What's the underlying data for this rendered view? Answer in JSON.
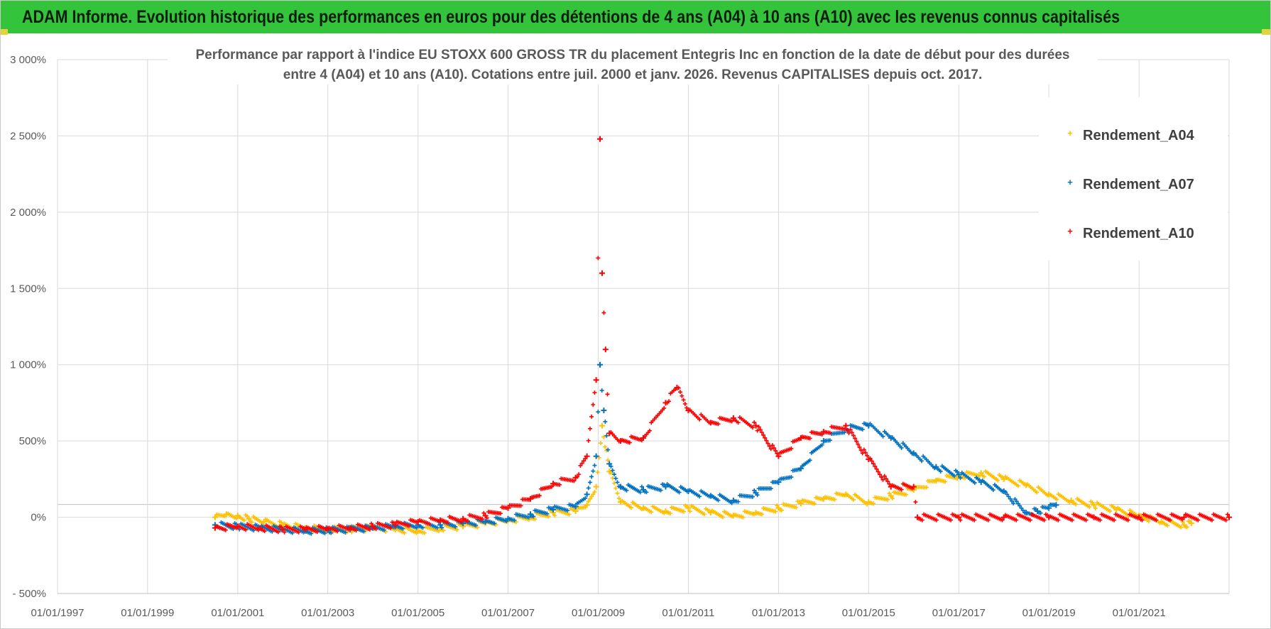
{
  "header": {
    "title": "ADAM Informe. Evolution historique des performances en euros pour des détentions de 4 ans (A04) à 10 ans (A10) avec les revenus connus capitalisés"
  },
  "chart_data": {
    "type": "scatter",
    "title_lines": [
      "Performance par rapport à l'indice EU STOXX 600 GROSS TR  du placement Entegris Inc en fonction de la date de début pour des durées",
      "entre 4 (A04) et 10 ans (A10).  Cotations entre juil. 2000 et janv. 2026. Revenus CAPITALISES depuis oct. 2017."
    ],
    "xlabel": "",
    "ylabel": "",
    "x_ticks": [
      "01/01/1997",
      "01/01/1999",
      "01/01/2001",
      "01/01/2003",
      "01/01/2005",
      "01/01/2007",
      "01/01/2009",
      "01/01/2011",
      "01/01/2013",
      "01/01/2015",
      "01/01/2017",
      "01/01/2019",
      "01/01/2021"
    ],
    "xlim": [
      "1997-01-01",
      "2023-01-01"
    ],
    "y_ticks": [
      "3 000%",
      "2 500%",
      "2 000%",
      "1 500%",
      "1 000%",
      "500%",
      "0%",
      "- 500%"
    ],
    "ylim": [
      -500,
      3000
    ],
    "grid": true,
    "legend_position": "top-right",
    "marker": "+",
    "series": [
      {
        "name": "Rendement_A04",
        "color": "#ffc000",
        "points": [
          [
            "2000-07-01",
            0
          ],
          [
            "2000-10-01",
            20
          ],
          [
            "2001-01-01",
            10
          ],
          [
            "2001-04-01",
            -10
          ],
          [
            "2001-08-01",
            -30
          ],
          [
            "2002-01-01",
            -50
          ],
          [
            "2002-07-01",
            -70
          ],
          [
            "2003-01-01",
            -80
          ],
          [
            "2003-07-01",
            -80
          ],
          [
            "2004-01-01",
            -70
          ],
          [
            "2004-07-01",
            -80
          ],
          [
            "2005-01-01",
            -90
          ],
          [
            "2005-07-01",
            -70
          ],
          [
            "2006-01-01",
            -60
          ],
          [
            "2006-07-01",
            -40
          ],
          [
            "2007-01-01",
            -20
          ],
          [
            "2007-07-01",
            0
          ],
          [
            "2008-01-01",
            30
          ],
          [
            "2008-07-01",
            40
          ],
          [
            "2008-10-01",
            80
          ],
          [
            "2008-12-15",
            200
          ],
          [
            "2009-02-01",
            600
          ],
          [
            "2009-04-01",
            300
          ],
          [
            "2009-07-01",
            100
          ],
          [
            "2010-01-01",
            60
          ],
          [
            "2010-07-01",
            40
          ],
          [
            "2011-01-01",
            60
          ],
          [
            "2011-07-01",
            30
          ],
          [
            "2012-01-01",
            10
          ],
          [
            "2012-07-01",
            30
          ],
          [
            "2013-01-01",
            60
          ],
          [
            "2013-07-01",
            90
          ],
          [
            "2014-01-01",
            120
          ],
          [
            "2014-07-01",
            150
          ],
          [
            "2015-01-01",
            100
          ],
          [
            "2015-07-01",
            140
          ],
          [
            "2016-01-01",
            180
          ],
          [
            "2016-07-01",
            240
          ],
          [
            "2017-01-01",
            270
          ],
          [
            "2017-07-01",
            290
          ],
          [
            "2018-01-01",
            250
          ],
          [
            "2018-07-01",
            210
          ],
          [
            "2019-01-01",
            150
          ],
          [
            "2019-07-01",
            110
          ],
          [
            "2020-01-01",
            80
          ],
          [
            "2020-07-01",
            50
          ],
          [
            "2021-01-01",
            10
          ],
          [
            "2021-07-01",
            -30
          ],
          [
            "2022-01-01",
            -50
          ],
          [
            "2022-03-01",
            -40
          ]
        ]
      },
      {
        "name": "Rendement_A07",
        "color": "#0070c0",
        "points": [
          [
            "2000-07-01",
            -50
          ],
          [
            "2001-01-01",
            -60
          ],
          [
            "2001-07-01",
            -70
          ],
          [
            "2002-01-01",
            -80
          ],
          [
            "2002-07-01",
            -90
          ],
          [
            "2003-01-01",
            -85
          ],
          [
            "2003-07-01",
            -80
          ],
          [
            "2004-01-01",
            -70
          ],
          [
            "2004-07-01",
            -60
          ],
          [
            "2005-01-01",
            -50
          ],
          [
            "2005-07-01",
            -50
          ],
          [
            "2006-01-01",
            -40
          ],
          [
            "2006-07-01",
            -30
          ],
          [
            "2007-01-01",
            -10
          ],
          [
            "2007-07-01",
            20
          ],
          [
            "2008-01-01",
            50
          ],
          [
            "2008-07-01",
            70
          ],
          [
            "2008-10-01",
            150
          ],
          [
            "2008-12-15",
            400
          ],
          [
            "2009-01-15",
            1000
          ],
          [
            "2009-02-15",
            700
          ],
          [
            "2009-04-01",
            350
          ],
          [
            "2009-07-01",
            200
          ],
          [
            "2010-01-01",
            180
          ],
          [
            "2010-07-01",
            200
          ],
          [
            "2011-01-01",
            170
          ],
          [
            "2011-07-01",
            140
          ],
          [
            "2012-01-01",
            110
          ],
          [
            "2012-07-01",
            160
          ],
          [
            "2013-01-01",
            230
          ],
          [
            "2013-07-01",
            320
          ],
          [
            "2014-01-01",
            500
          ],
          [
            "2014-07-01",
            580
          ],
          [
            "2015-01-01",
            600
          ],
          [
            "2015-07-01",
            520
          ],
          [
            "2016-01-01",
            420
          ],
          [
            "2016-07-01",
            330
          ],
          [
            "2017-01-01",
            280
          ],
          [
            "2017-07-01",
            230
          ],
          [
            "2018-01-01",
            170
          ],
          [
            "2018-07-01",
            30
          ],
          [
            "2018-10-01",
            40
          ],
          [
            "2019-01-01",
            60
          ],
          [
            "2019-03-01",
            80
          ]
        ]
      },
      {
        "name": "Rendement_A10",
        "color": "#ff0000",
        "points": [
          [
            "2000-07-01",
            -70
          ],
          [
            "2001-01-01",
            -60
          ],
          [
            "2001-07-01",
            -70
          ],
          [
            "2002-01-01",
            -80
          ],
          [
            "2002-07-01",
            -80
          ],
          [
            "2003-01-01",
            -75
          ],
          [
            "2003-07-01",
            -70
          ],
          [
            "2004-01-01",
            -60
          ],
          [
            "2004-07-01",
            -50
          ],
          [
            "2005-01-01",
            -30
          ],
          [
            "2005-07-01",
            -20
          ],
          [
            "2006-01-01",
            -10
          ],
          [
            "2006-07-01",
            10
          ],
          [
            "2007-01-01",
            60
          ],
          [
            "2007-07-01",
            120
          ],
          [
            "2008-01-01",
            220
          ],
          [
            "2008-07-01",
            260
          ],
          [
            "2008-10-01",
            400
          ],
          [
            "2008-12-15",
            900
          ],
          [
            "2009-01-15",
            2480
          ],
          [
            "2009-02-01",
            1600
          ],
          [
            "2009-03-01",
            1100
          ],
          [
            "2009-04-01",
            550
          ],
          [
            "2009-07-01",
            500
          ],
          [
            "2010-01-01",
            520
          ],
          [
            "2010-07-01",
            750
          ],
          [
            "2010-10-01",
            850
          ],
          [
            "2011-01-01",
            700
          ],
          [
            "2011-07-01",
            620
          ],
          [
            "2012-01-01",
            650
          ],
          [
            "2012-07-01",
            600
          ],
          [
            "2013-01-01",
            400
          ],
          [
            "2013-07-01",
            520
          ],
          [
            "2014-01-01",
            560
          ],
          [
            "2014-07-01",
            600
          ],
          [
            "2015-01-01",
            380
          ],
          [
            "2015-07-01",
            200
          ],
          [
            "2016-01-01",
            200
          ],
          [
            "2016-02-01",
            0
          ],
          [
            "2017-01-01",
            0
          ],
          [
            "2018-01-01",
            0
          ],
          [
            "2019-01-01",
            0
          ],
          [
            "2020-01-01",
            0
          ],
          [
            "2021-01-01",
            0
          ],
          [
            "2022-01-01",
            0
          ],
          [
            "2023-01-01",
            0
          ]
        ]
      }
    ]
  }
}
